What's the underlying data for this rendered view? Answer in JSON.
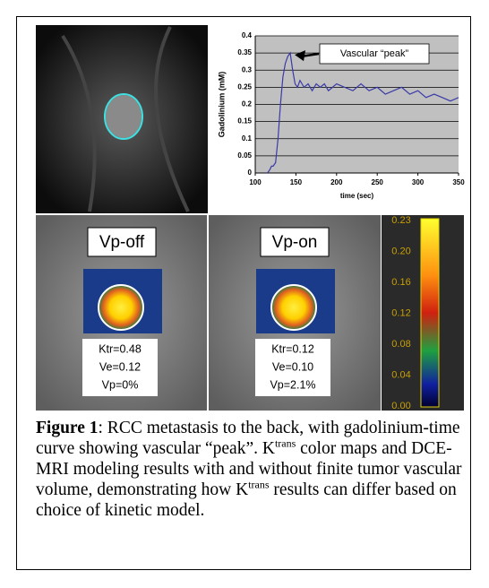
{
  "chart_data": {
    "type": "line",
    "ylabel": "Gadolinium (mM)",
    "xlabel": "time (sec)",
    "annotation": "Vascular “peak”",
    "x": [
      115,
      118,
      120,
      122,
      125,
      128,
      131,
      134,
      137,
      140,
      143,
      146,
      149,
      152,
      155,
      160,
      165,
      170,
      175,
      180,
      185,
      190,
      195,
      200,
      210,
      220,
      230,
      240,
      250,
      260,
      270,
      280,
      290,
      300,
      310,
      320,
      330,
      340,
      350
    ],
    "values": [
      0,
      0.01,
      0.02,
      0.02,
      0.03,
      0.1,
      0.2,
      0.28,
      0.32,
      0.34,
      0.35,
      0.3,
      0.26,
      0.25,
      0.27,
      0.25,
      0.26,
      0.24,
      0.26,
      0.25,
      0.26,
      0.24,
      0.25,
      0.26,
      0.25,
      0.24,
      0.26,
      0.24,
      0.25,
      0.23,
      0.24,
      0.25,
      0.23,
      0.24,
      0.22,
      0.23,
      0.22,
      0.21,
      0.22
    ],
    "color": "#3a3aa8",
    "xlim": [
      100,
      350
    ],
    "xticks": [
      100,
      150,
      200,
      250,
      300,
      350
    ],
    "ylim": [
      0,
      0.4
    ],
    "yticks": [
      0,
      0.05,
      0.1,
      0.15,
      0.2,
      0.25,
      0.3,
      0.35,
      0.4
    ],
    "grid": true
  },
  "panels": [
    {
      "title": "Vp-off",
      "results": [
        "Ktr=0.48",
        "Ve=0.12",
        "Vp=0%"
      ]
    },
    {
      "title": "Vp-on",
      "results": [
        "Ktr=0.12",
        "Ve=0.10",
        "Vp=2.1%"
      ]
    }
  ],
  "colorbar": {
    "labels": [
      "0.23",
      "0.20",
      "0.16",
      "0.12",
      "0.08",
      "0.04",
      "0.00"
    ]
  },
  "caption": {
    "label": "Figure 1",
    "parts": [
      ": RCC metastasis to the back, with gadolinium-time curve showing vascular “peak”. K",
      "trans",
      " color maps and DCE-MRI modeling results with and without finite tumor vascular volume, demonstrating how K",
      "trans",
      " results can differ based on choice of kinetic model."
    ]
  }
}
